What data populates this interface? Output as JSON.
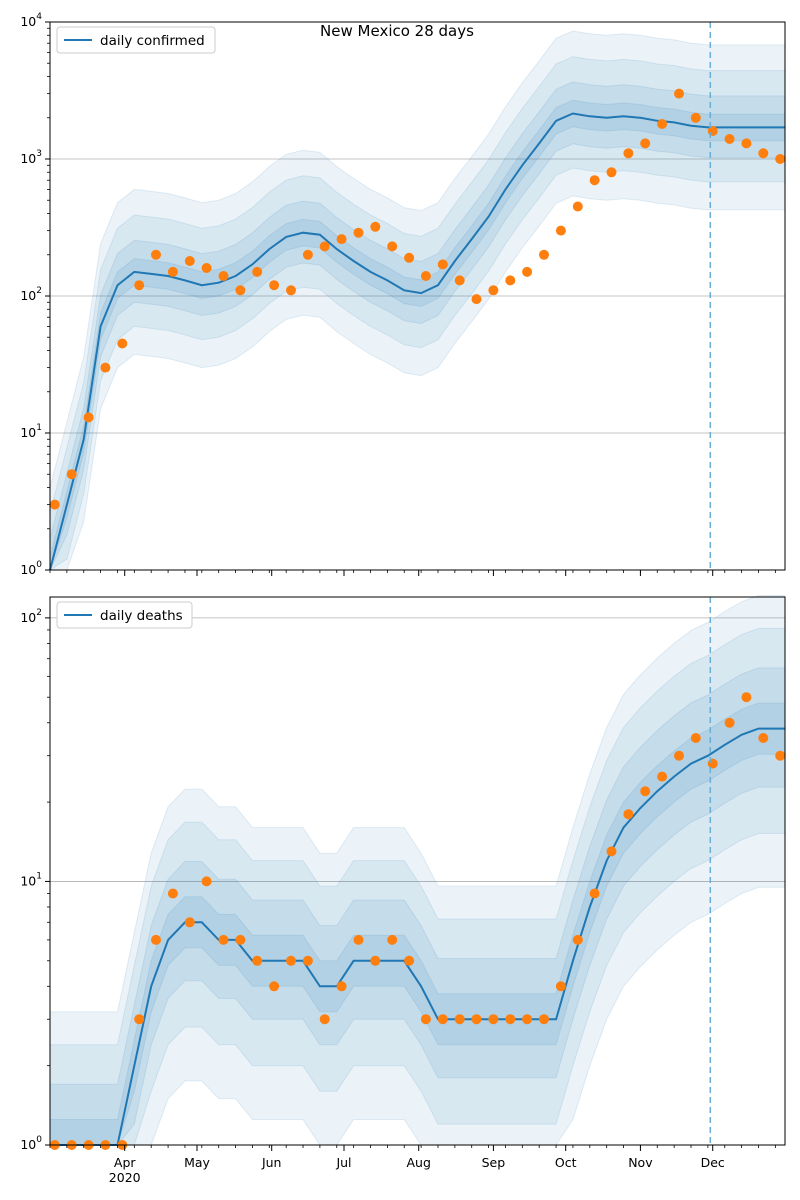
{
  "figure": {
    "title": "New Mexico 28 days"
  },
  "chart_data": [
    {
      "type": "line",
      "yscale": "log",
      "ylim": [
        1,
        10000
      ],
      "xlim": [
        "2020-03-01",
        "2020-12-31"
      ],
      "grid": "horizontal",
      "legend": {
        "position": "upper-left",
        "entries": [
          "daily confirmed"
        ]
      },
      "ytick_labels": [
        "10^0",
        "10^1",
        "10^2",
        "10^3",
        "10^4"
      ],
      "forecast_date": "2020-11-30",
      "colors": {
        "model": "#1f77b4",
        "observed": "#ff7f0e",
        "band": "#1f77b4"
      },
      "series": [
        {
          "name": "daily confirmed",
          "kind": "model-median",
          "step_days": 7,
          "x_start": "2020-03-01",
          "values": [
            1,
            3,
            9,
            60,
            120,
            150,
            145,
            140,
            130,
            120,
            125,
            140,
            170,
            220,
            270,
            290,
            280,
            220,
            180,
            150,
            130,
            110,
            105,
            120,
            180,
            260,
            380,
            600,
            900,
            1300,
            1900,
            2150,
            2050,
            2000,
            2050,
            2000,
            1900,
            1850,
            1750,
            1700,
            1700,
            1700,
            1700,
            1700
          ]
        },
        {
          "name": "daily confirmed observed",
          "kind": "observed",
          "step_days": 7,
          "x_start": "2020-03-03",
          "values": [
            3,
            5,
            13,
            30,
            45,
            120,
            200,
            150,
            180,
            160,
            140,
            110,
            150,
            120,
            110,
            200,
            230,
            260,
            290,
            320,
            230,
            190,
            140,
            170,
            130,
            95,
            110,
            130,
            150,
            200,
            300,
            450,
            700,
            800,
            1100,
            1300,
            1800,
            3000,
            2000,
            1600,
            1400,
            1300,
            1100,
            1000
          ]
        }
      ],
      "bands": [
        {
          "name": "inner",
          "lower_factor": 0.8,
          "upper_factor": 1.25
        },
        {
          "name": "mid",
          "lower_factor": 0.6,
          "upper_factor": 1.7
        },
        {
          "name": "outer",
          "lower_factor": 0.4,
          "upper_factor": 2.6
        },
        {
          "name": "outermost",
          "lower_factor": 0.25,
          "upper_factor": 4.0
        }
      ]
    },
    {
      "type": "line",
      "yscale": "log",
      "ylim": [
        1,
        120
      ],
      "xlim": [
        "2020-03-01",
        "2020-12-31"
      ],
      "grid": "horizontal",
      "legend": {
        "position": "upper-left",
        "entries": [
          "daily deaths"
        ]
      },
      "ytick_labels": [
        "10^0",
        "10^1",
        "10^2"
      ],
      "xtick_labels": [
        "Apr\n2020",
        "May",
        "Jun",
        "Jul",
        "Aug",
        "Sep",
        "Oct",
        "Nov",
        "Dec"
      ],
      "forecast_date": "2020-11-30",
      "colors": {
        "model": "#1f77b4",
        "observed": "#ff7f0e",
        "band": "#1f77b4"
      },
      "series": [
        {
          "name": "daily deaths",
          "kind": "model-median",
          "step_days": 7,
          "x_start": "2020-03-01",
          "values": [
            1,
            1,
            1,
            1,
            1,
            2,
            4,
            6,
            7,
            7,
            6,
            6,
            5,
            5,
            5,
            5,
            4,
            4,
            5,
            5,
            5,
            5,
            4,
            3,
            3,
            3,
            3,
            3,
            3,
            3,
            3,
            5,
            8,
            12,
            16,
            19,
            22,
            25,
            28,
            30,
            33,
            36,
            38,
            38,
            38
          ]
        },
        {
          "name": "daily deaths observed",
          "kind": "observed",
          "step_days": 7,
          "x_start": "2020-03-03",
          "values": [
            1,
            1,
            1,
            1,
            1,
            3,
            6,
            9,
            7,
            10,
            6,
            6,
            5,
            4,
            5,
            5,
            3,
            4,
            6,
            5,
            6,
            5,
            3,
            3,
            3,
            3,
            3,
            3,
            3,
            3,
            4,
            6,
            9,
            13,
            18,
            22,
            25,
            30,
            35,
            28,
            40,
            50,
            35,
            30
          ]
        }
      ],
      "bands": [
        {
          "name": "inner",
          "lower_factor": 0.8,
          "upper_factor": 1.25
        },
        {
          "name": "mid",
          "lower_factor": 0.6,
          "upper_factor": 1.7
        },
        {
          "name": "outer",
          "lower_factor": 0.4,
          "upper_factor": 2.4
        },
        {
          "name": "outermost",
          "lower_factor": 0.25,
          "upper_factor": 3.2
        }
      ]
    }
  ]
}
